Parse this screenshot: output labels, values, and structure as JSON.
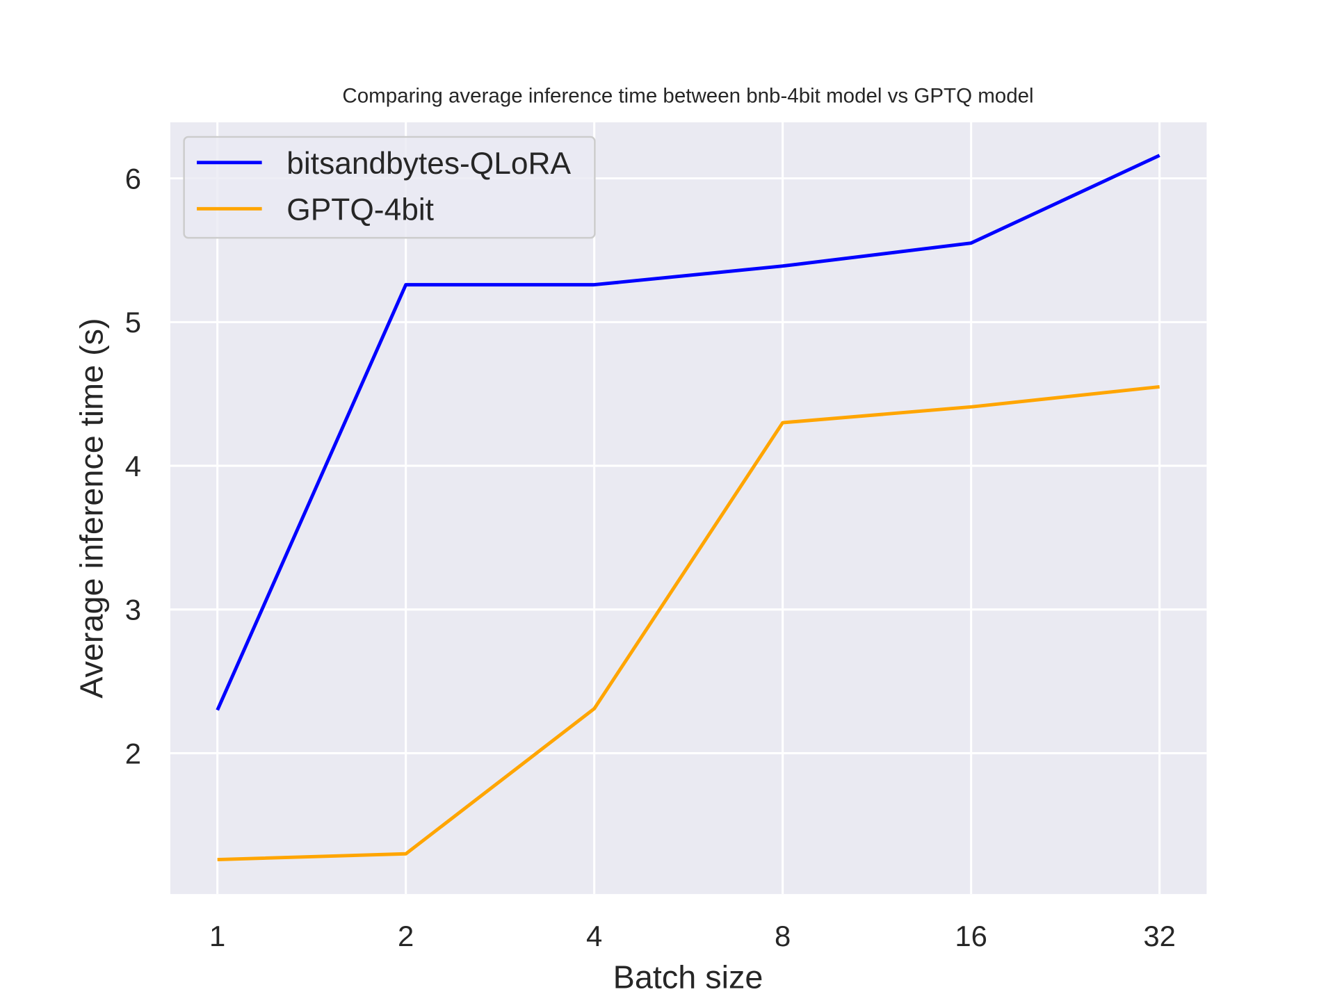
{
  "chart_data": {
    "type": "line",
    "title": "Comparing average inference time between bnb-4bit model vs GPTQ model",
    "xlabel": "Batch size",
    "ylabel": "Average inference time (s)",
    "categories": [
      "1",
      "2",
      "4",
      "8",
      "16",
      "32"
    ],
    "xlim": [
      -0.25,
      5.25
    ],
    "ylim": [
      1.02,
      6.39
    ],
    "yticks": [
      2,
      3,
      4,
      5,
      6
    ],
    "grid": true,
    "background": "#eaeaf2",
    "legend_position": "top-left",
    "series": [
      {
        "name": "bitsandbytes-QLoRA",
        "color": "#0000ff",
        "values": [
          2.3,
          5.26,
          5.26,
          5.39,
          5.55,
          6.16
        ]
      },
      {
        "name": "GPTQ-4bit",
        "color": "#ffa500",
        "values": [
          1.26,
          1.3,
          2.31,
          4.3,
          4.41,
          4.55
        ]
      }
    ]
  }
}
